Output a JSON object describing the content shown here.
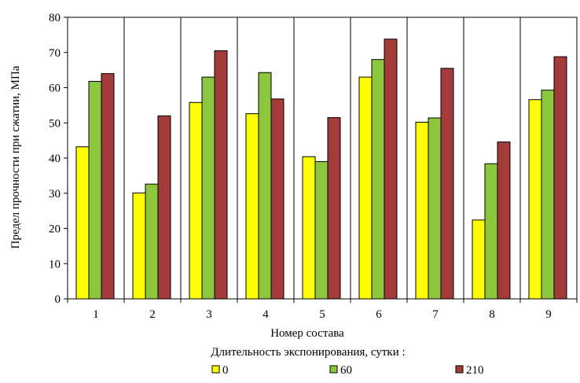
{
  "chart_data": {
    "type": "bar",
    "title": "",
    "xlabel": "Номер состава",
    "ylabel": "Предел прочности при сжатии, МПа",
    "categories": [
      "1",
      "2",
      "3",
      "4",
      "5",
      "6",
      "7",
      "8",
      "9"
    ],
    "ylim": [
      0,
      80
    ],
    "yticks": [
      "0",
      "10",
      "20",
      "30",
      "40",
      "50",
      "60",
      "70",
      "80"
    ],
    "grid": false,
    "legend_title": "Длительность экспонирования,  сутки :",
    "legend_position": "bottom",
    "series": [
      {
        "name": "0",
        "color": "#FFFF00",
        "values": [
          43.2,
          30.1,
          55.8,
          52.6,
          40.4,
          63.0,
          50.2,
          22.4,
          56.6
        ]
      },
      {
        "name": "60",
        "color": "#8CC63F",
        "values": [
          61.8,
          32.6,
          63.0,
          64.3,
          39.0,
          68.0,
          51.4,
          38.4,
          59.3
        ]
      },
      {
        "name": "210",
        "color": "#A33B3B",
        "values": [
          64.0,
          52.0,
          70.5,
          56.8,
          51.5,
          73.8,
          65.5,
          44.6,
          68.8
        ]
      }
    ]
  }
}
